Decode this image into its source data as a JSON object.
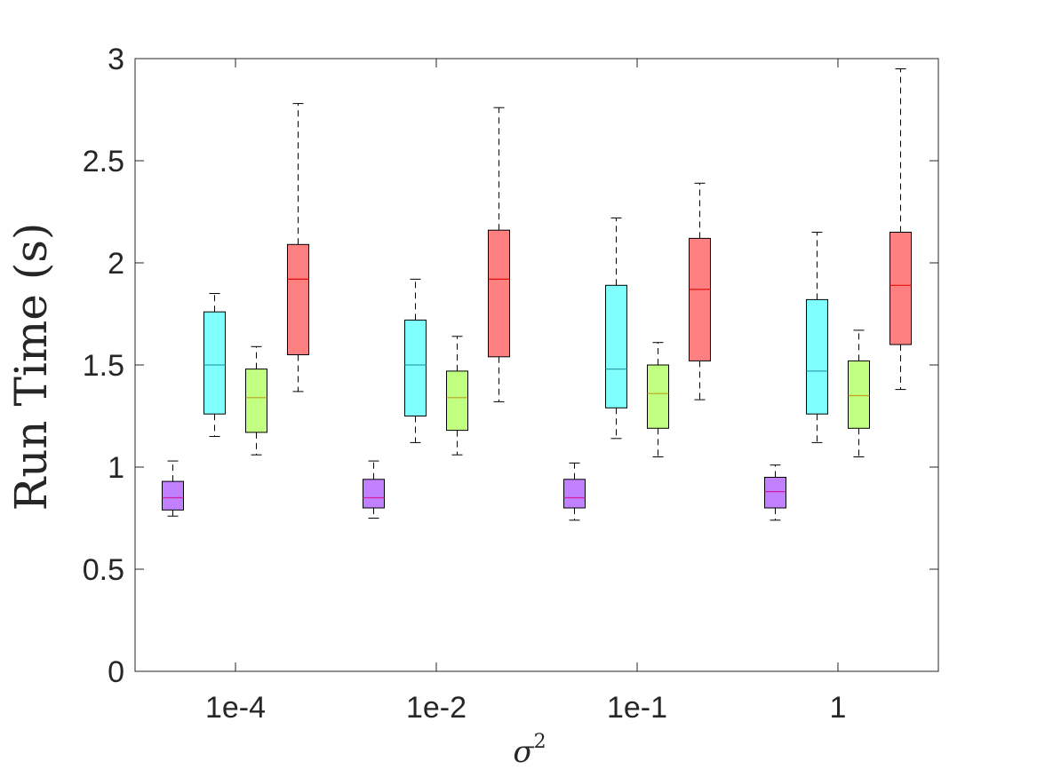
{
  "chart_data": {
    "type": "boxplot",
    "title": "",
    "xlabel": "σ",
    "xlabel_superscript": "2",
    "ylabel": "Run Time (s)",
    "ylim": [
      0,
      3
    ],
    "yticks": [
      "0",
      "0.5",
      "1",
      "1.5",
      "2",
      "2.5",
      "3"
    ],
    "ytick_values": [
      0,
      0.5,
      1,
      1.5,
      2,
      2.5,
      3
    ],
    "categories": [
      "1e-4",
      "1e-2",
      "1e-1",
      "1"
    ],
    "grid": false,
    "series": [
      {
        "name": "purple",
        "color": "#c080ff",
        "median_color": "#d020a0",
        "boxes": [
          {
            "whisker_low": 0.76,
            "q1": 0.79,
            "median": 0.85,
            "q3": 0.93,
            "whisker_high": 1.03
          },
          {
            "whisker_low": 0.75,
            "q1": 0.8,
            "median": 0.85,
            "q3": 0.94,
            "whisker_high": 1.03
          },
          {
            "whisker_low": 0.74,
            "q1": 0.8,
            "median": 0.85,
            "q3": 0.94,
            "whisker_high": 1.02
          },
          {
            "whisker_low": 0.74,
            "q1": 0.8,
            "median": 0.88,
            "q3": 0.95,
            "whisker_high": 1.01
          }
        ]
      },
      {
        "name": "cyan",
        "color": "#80ffff",
        "median_color": "#30a0b0",
        "boxes": [
          {
            "whisker_low": 1.15,
            "q1": 1.26,
            "median": 1.5,
            "q3": 1.76,
            "whisker_high": 1.85
          },
          {
            "whisker_low": 1.12,
            "q1": 1.25,
            "median": 1.5,
            "q3": 1.72,
            "whisker_high": 1.92
          },
          {
            "whisker_low": 1.14,
            "q1": 1.29,
            "median": 1.48,
            "q3": 1.89,
            "whisker_high": 2.22
          },
          {
            "whisker_low": 1.12,
            "q1": 1.26,
            "median": 1.47,
            "q3": 1.82,
            "whisker_high": 2.15
          }
        ]
      },
      {
        "name": "green",
        "color": "#c0ff80",
        "median_color": "#c0a020",
        "boxes": [
          {
            "whisker_low": 1.06,
            "q1": 1.17,
            "median": 1.34,
            "q3": 1.48,
            "whisker_high": 1.59
          },
          {
            "whisker_low": 1.06,
            "q1": 1.18,
            "median": 1.34,
            "q3": 1.47,
            "whisker_high": 1.64
          },
          {
            "whisker_low": 1.05,
            "q1": 1.19,
            "median": 1.36,
            "q3": 1.5,
            "whisker_high": 1.61
          },
          {
            "whisker_low": 1.05,
            "q1": 1.19,
            "median": 1.35,
            "q3": 1.52,
            "whisker_high": 1.67
          }
        ]
      },
      {
        "name": "red",
        "color": "#ff8080",
        "median_color": "#e01010",
        "boxes": [
          {
            "whisker_low": 1.37,
            "q1": 1.55,
            "median": 1.92,
            "q3": 2.09,
            "whisker_high": 2.78
          },
          {
            "whisker_low": 1.32,
            "q1": 1.54,
            "median": 1.92,
            "q3": 2.16,
            "whisker_high": 2.76
          },
          {
            "whisker_low": 1.33,
            "q1": 1.52,
            "median": 1.87,
            "q3": 2.12,
            "whisker_high": 2.39
          },
          {
            "whisker_low": 1.38,
            "q1": 1.6,
            "median": 1.89,
            "q3": 2.15,
            "whisker_high": 2.95
          }
        ]
      }
    ]
  }
}
